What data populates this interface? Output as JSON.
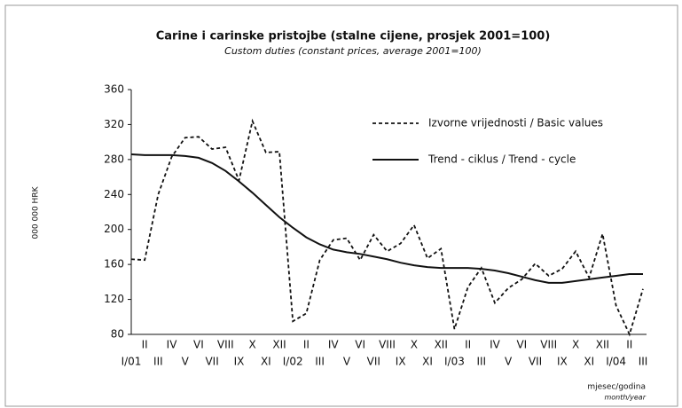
{
  "chart_data": {
    "type": "line",
    "title": "Carine i carinske pristojbe (stalne cijene, prosjek 2001=100)",
    "subtitle": "Custom duties (constant prices, average 2001=100)",
    "y_label": "000 000 HRK",
    "x_label": "mjesec/godina",
    "x_label_sub": "month/year",
    "categories": [
      "I/01",
      "II",
      "III",
      "IV",
      "V",
      "VI",
      "VII",
      "VIII",
      "IX",
      "X",
      "XI",
      "XII",
      "I/02",
      "II",
      "III",
      "IV",
      "V",
      "VI",
      "VII",
      "VIII",
      "IX",
      "X",
      "XI",
      "XII",
      "I/03",
      "II",
      "III",
      "IV",
      "V",
      "VI",
      "VII",
      "VIII",
      "IX",
      "X",
      "XI",
      "XII",
      "I/04",
      "II",
      "III"
    ],
    "series": [
      {
        "name": "Izvorne vrijednosti / Basic values",
        "color": "#111111",
        "dash": true,
        "values": [
          166,
          165,
          240,
          283,
          305,
          306,
          292,
          294,
          256,
          324,
          288,
          289,
          95,
          104,
          165,
          188,
          190,
          165,
          194,
          175,
          184,
          205,
          167,
          178,
          86,
          134,
          156,
          116,
          133,
          143,
          161,
          147,
          155,
          175,
          145,
          195,
          113,
          80,
          132
        ]
      },
      {
        "name": "Trend - ciklus / Trend - cycle",
        "color": "#111111",
        "dash": false,
        "values": [
          286,
          285,
          285,
          285,
          284,
          282,
          276,
          267,
          255,
          242,
          228,
          214,
          202,
          191,
          183,
          177,
          174,
          172,
          169,
          166,
          162,
          159,
          157,
          156,
          156,
          156,
          155,
          153,
          150,
          146,
          142,
          139,
          139,
          141,
          143,
          145,
          147,
          149,
          149
        ]
      }
    ],
    "ylim": [
      80,
      360
    ],
    "yticks": [
      80,
      120,
      160,
      200,
      240,
      280,
      320,
      360
    ],
    "grid": false
  }
}
